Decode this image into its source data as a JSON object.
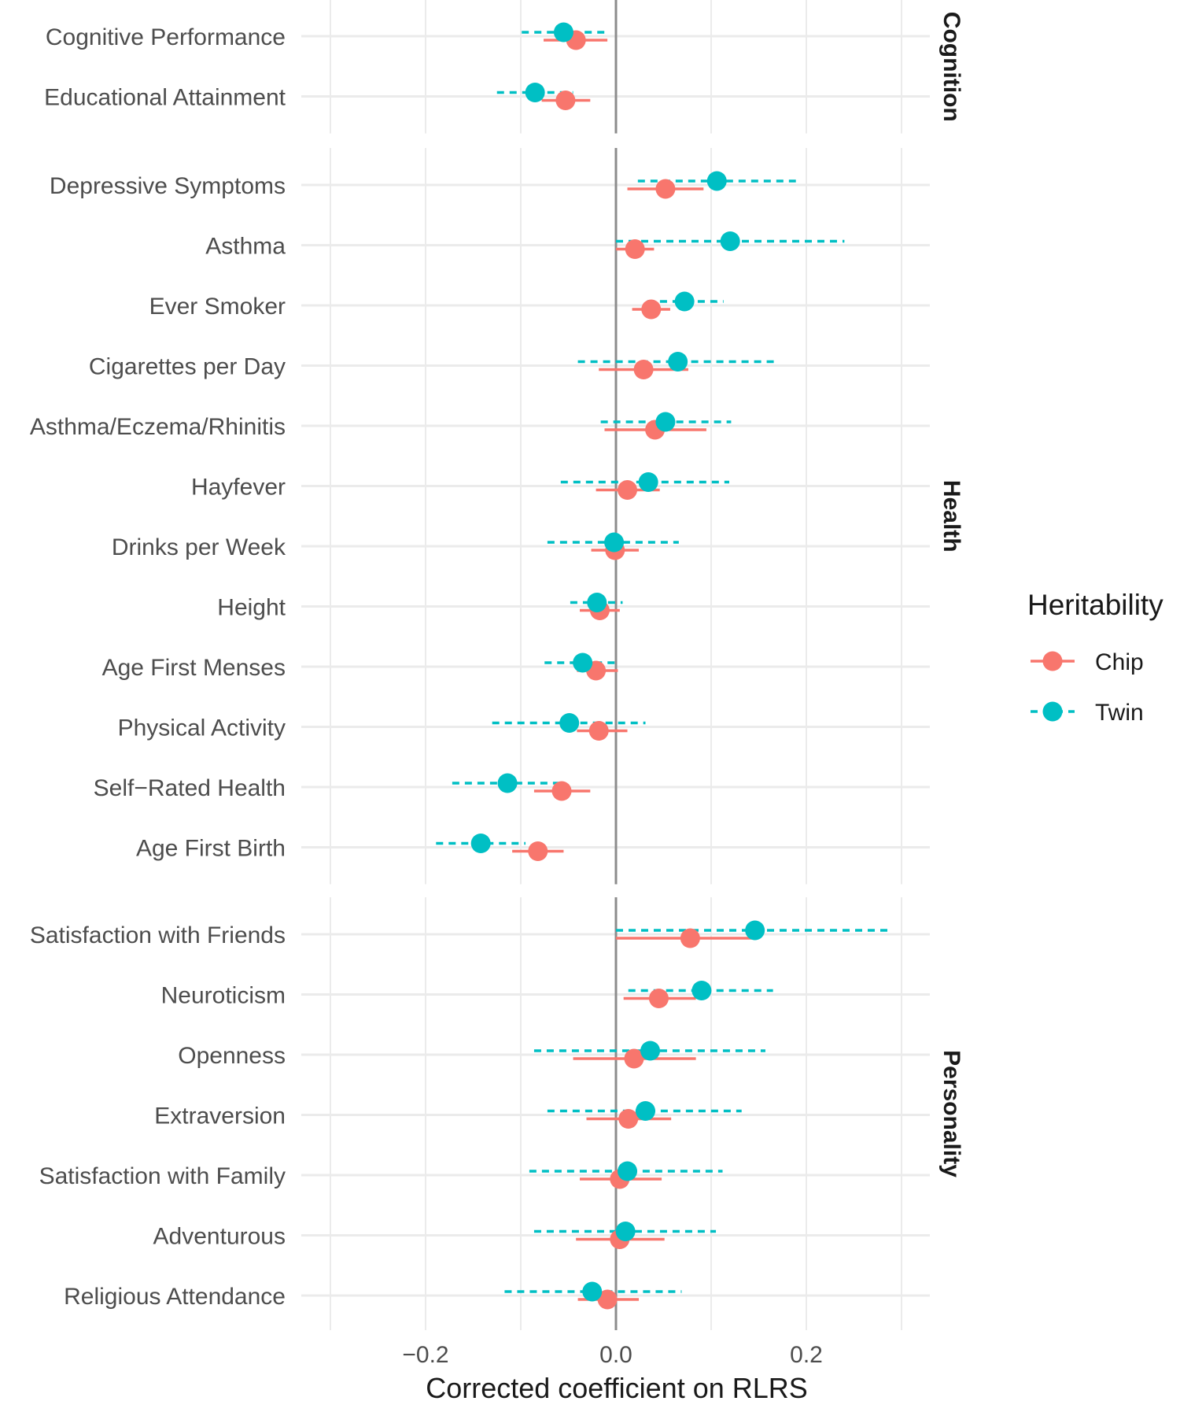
{
  "chart_data": {
    "type": "scatter",
    "subtype": "forest-plot-with-error-bars",
    "xlabel": "Corrected coefficient on RLRS",
    "ylabel": "",
    "xlim": [
      -0.33,
      0.33
    ],
    "x_ticks": [
      -0.2,
      0.0,
      0.2
    ],
    "x_tick_labels": [
      "−0.2",
      "0.0",
      "0.2"
    ],
    "reference_line": 0,
    "grid": true,
    "legend": {
      "title": "Heritability",
      "position": "right",
      "entries": [
        {
          "name": "Chip",
          "color": "#F8766D",
          "line": "solid"
        },
        {
          "name": "Twin",
          "color": "#00BFC4",
          "line": "dashed"
        }
      ]
    },
    "facets": [
      {
        "name": "Cognition",
        "rows": [
          {
            "label": "Cognitive Performance",
            "chip": {
              "est": -0.042,
              "lo": -0.076,
              "hi": -0.009
            },
            "twin": {
              "est": -0.055,
              "lo": -0.099,
              "hi": -0.012
            }
          },
          {
            "label": "Educational Attainment",
            "chip": {
              "est": -0.053,
              "lo": -0.078,
              "hi": -0.027
            },
            "twin": {
              "est": -0.085,
              "lo": -0.125,
              "hi": -0.045
            }
          }
        ]
      },
      {
        "name": "Health",
        "rows": [
          {
            "label": "Depressive Symptoms",
            "chip": {
              "est": 0.052,
              "lo": 0.012,
              "hi": 0.092
            },
            "twin": {
              "est": 0.106,
              "lo": 0.023,
              "hi": 0.189
            }
          },
          {
            "label": "Asthma",
            "chip": {
              "est": 0.02,
              "lo": 0.0,
              "hi": 0.04
            },
            "twin": {
              "est": 0.12,
              "lo": 0.0,
              "hi": 0.24
            }
          },
          {
            "label": "Ever Smoker",
            "chip": {
              "est": 0.037,
              "lo": 0.017,
              "hi": 0.057
            },
            "twin": {
              "est": 0.072,
              "lo": 0.033,
              "hi": 0.113
            }
          },
          {
            "label": "Cigarettes per Day",
            "chip": {
              "est": 0.029,
              "lo": -0.018,
              "hi": 0.076
            },
            "twin": {
              "est": 0.065,
              "lo": -0.04,
              "hi": 0.171
            }
          },
          {
            "label": "Asthma/Eczema/Rhinitis",
            "chip": {
              "est": 0.041,
              "lo": -0.012,
              "hi": 0.095
            },
            "twin": {
              "est": 0.052,
              "lo": -0.016,
              "hi": 0.121
            }
          },
          {
            "label": "Hayfever",
            "chip": {
              "est": 0.012,
              "lo": -0.021,
              "hi": 0.046
            },
            "twin": {
              "est": 0.034,
              "lo": -0.058,
              "hi": 0.119
            }
          },
          {
            "label": "Drinks per Week",
            "chip": {
              "est": -0.001,
              "lo": -0.026,
              "hi": 0.024
            },
            "twin": {
              "est": -0.002,
              "lo": -0.072,
              "hi": 0.066
            }
          },
          {
            "label": "Height",
            "chip": {
              "est": -0.017,
              "lo": -0.038,
              "hi": 0.004
            },
            "twin": {
              "est": -0.02,
              "lo": -0.048,
              "hi": 0.007
            }
          },
          {
            "label": "Age First Menses",
            "chip": {
              "est": -0.021,
              "lo": -0.041,
              "hi": 0.002
            },
            "twin": {
              "est": -0.035,
              "lo": -0.075,
              "hi": 0.004
            }
          },
          {
            "label": "Physical Activity",
            "chip": {
              "est": -0.018,
              "lo": -0.041,
              "hi": 0.012
            },
            "twin": {
              "est": -0.049,
              "lo": -0.13,
              "hi": 0.031
            }
          },
          {
            "label": "Self−Rated Health",
            "chip": {
              "est": -0.057,
              "lo": -0.086,
              "hi": -0.027
            },
            "twin": {
              "est": -0.114,
              "lo": -0.172,
              "hi": -0.056
            }
          },
          {
            "label": "Age First Birth",
            "chip": {
              "est": -0.082,
              "lo": -0.109,
              "hi": -0.055
            },
            "twin": {
              "est": -0.142,
              "lo": -0.189,
              "hi": -0.095
            }
          }
        ]
      },
      {
        "name": "Personality",
        "rows": [
          {
            "label": "Satisfaction with Friends",
            "chip": {
              "est": 0.078,
              "lo": 0.0,
              "hi": 0.147
            },
            "twin": {
              "est": 0.146,
              "lo": 0.0,
              "hi": 0.29
            }
          },
          {
            "label": "Neuroticism",
            "chip": {
              "est": 0.045,
              "lo": 0.008,
              "hi": 0.084
            },
            "twin": {
              "est": 0.09,
              "lo": 0.013,
              "hi": 0.165
            }
          },
          {
            "label": "Openness",
            "chip": {
              "est": 0.019,
              "lo": -0.045,
              "hi": 0.084
            },
            "twin": {
              "est": 0.036,
              "lo": -0.086,
              "hi": 0.157
            }
          },
          {
            "label": "Extraversion",
            "chip": {
              "est": 0.013,
              "lo": -0.031,
              "hi": 0.058
            },
            "twin": {
              "est": 0.031,
              "lo": -0.072,
              "hi": 0.132
            }
          },
          {
            "label": "Satisfaction with Family",
            "chip": {
              "est": 0.004,
              "lo": -0.038,
              "hi": 0.048
            },
            "twin": {
              "est": 0.012,
              "lo": -0.091,
              "hi": 0.112
            }
          },
          {
            "label": "Adventurous",
            "chip": {
              "est": 0.004,
              "lo": -0.042,
              "hi": 0.051
            },
            "twin": {
              "est": 0.01,
              "lo": -0.086,
              "hi": 0.105
            }
          },
          {
            "label": "Religious Attendance",
            "chip": {
              "est": -0.009,
              "lo": -0.04,
              "hi": 0.024
            },
            "twin": {
              "est": -0.025,
              "lo": -0.117,
              "hi": 0.069
            }
          }
        ]
      }
    ]
  }
}
